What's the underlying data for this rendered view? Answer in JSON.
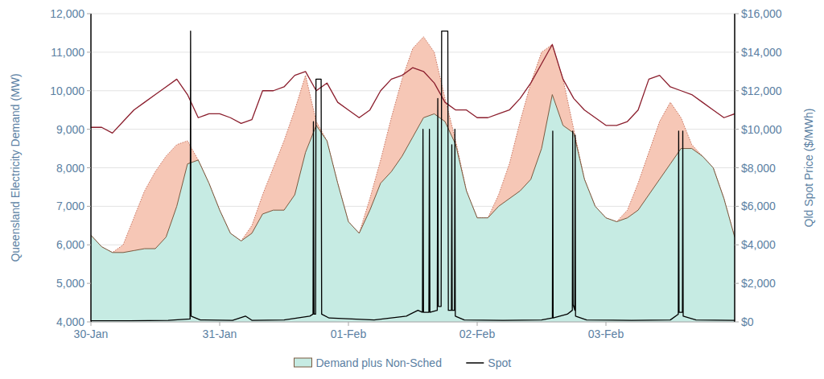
{
  "chart_data": {
    "type": "line",
    "x": [
      0,
      0.0833,
      0.1667,
      0.25,
      0.3333,
      0.4167,
      0.5,
      0.5833,
      0.6667,
      0.75,
      0.8333,
      0.9167,
      1,
      1.0833,
      1.1667,
      1.25,
      1.3333,
      1.4167,
      1.5,
      1.5833,
      1.6667,
      1.75,
      1.8333,
      1.9167,
      2,
      2.0833,
      2.1667,
      2.25,
      2.3333,
      2.4167,
      2.5,
      2.5833,
      2.6667,
      2.75,
      2.8333,
      2.9167,
      3,
      3.0833,
      3.1667,
      3.25,
      3.3333,
      3.4167,
      3.5,
      3.5833,
      3.6667,
      3.75,
      3.8333,
      3.9167,
      4,
      4.0833,
      4.1667,
      4.25,
      4.3333,
      4.4167,
      4.5,
      4.5833,
      4.6667,
      4.75,
      4.8333,
      4.9167,
      5
    ],
    "xlim": [
      0,
      5
    ],
    "xticks": [
      {
        "value": 0,
        "label": "30-Jan"
      },
      {
        "value": 1,
        "label": "31-Jan"
      },
      {
        "value": 2,
        "label": "01-Feb"
      },
      {
        "value": 3,
        "label": "02-Feb"
      },
      {
        "value": 4,
        "label": "03-Feb"
      }
    ],
    "ylabel": "Queensland Electricity Demand (MW)",
    "ylim": [
      4000,
      12000
    ],
    "yticks": [
      {
        "value": 4000,
        "label": "4,000"
      },
      {
        "value": 5000,
        "label": "5,000"
      },
      {
        "value": 6000,
        "label": "6,000"
      },
      {
        "value": 7000,
        "label": "7,000"
      },
      {
        "value": 8000,
        "label": "8,000"
      },
      {
        "value": 9000,
        "label": "9,000"
      },
      {
        "value": 10000,
        "label": "10,000"
      },
      {
        "value": 11000,
        "label": "11,000"
      },
      {
        "value": 12000,
        "label": "12,000"
      }
    ],
    "y2label": "Qld Spot Price ($/MWh)",
    "y2lim": [
      0,
      16000
    ],
    "y2ticks": [
      {
        "value": 0,
        "label": "$0"
      },
      {
        "value": 2000,
        "label": "$2,000"
      },
      {
        "value": 4000,
        "label": "$4,000"
      },
      {
        "value": 6000,
        "label": "$6,000"
      },
      {
        "value": 8000,
        "label": "$8,000"
      },
      {
        "value": 10000,
        "label": "$10,000"
      },
      {
        "value": 12000,
        "label": "$12,000"
      },
      {
        "value": 14000,
        "label": "$14,000"
      },
      {
        "value": 16000,
        "label": "$16,000"
      }
    ],
    "grid": true,
    "legend": "bottom",
    "series": [
      {
        "type": "area",
        "color": "#f6c7b6",
        "line_style": "dotted",
        "values": [
          6250,
          5950,
          5800,
          6000,
          6700,
          7400,
          7900,
          8300,
          8600,
          8700,
          8200,
          7600,
          6900,
          6300,
          6100,
          6500,
          7300,
          8000,
          8700,
          9500,
          10400,
          9200,
          8700,
          7600,
          6600,
          6300,
          7200,
          8200,
          9300,
          10300,
          11100,
          11400,
          11000,
          9800,
          8700,
          7400,
          6700,
          6700,
          7300,
          8100,
          9200,
          10200,
          11000,
          11200,
          10300,
          9000,
          7700,
          7000,
          6700,
          6600,
          6900,
          7600,
          8400,
          9200,
          9700,
          9300,
          8600,
          8300,
          8000,
          7200,
          6200
        ]
      },
      {
        "name": "Demand plus Non-Sched",
        "type": "area",
        "color": "#c6ebe3",
        "values": [
          6250,
          5950,
          5800,
          5800,
          5850,
          5900,
          5900,
          6200,
          7000,
          8100,
          8200,
          7600,
          6900,
          6300,
          6100,
          6300,
          6800,
          6900,
          6900,
          7300,
          8400,
          9100,
          8700,
          7600,
          6600,
          6300,
          6900,
          7600,
          7900,
          8300,
          8800,
          9300,
          9400,
          9200,
          8600,
          7400,
          6700,
          6700,
          7000,
          7200,
          7400,
          7700,
          8500,
          9900,
          9100,
          8900,
          7700,
          7000,
          6700,
          6600,
          6700,
          6900,
          7300,
          7700,
          8100,
          8500,
          8500,
          8300,
          8000,
          7200,
          6200
        ]
      },
      {
        "type": "line",
        "color": "#8b1e2d",
        "values": [
          9050,
          9050,
          8900,
          9200,
          9500,
          9700,
          9900,
          10100,
          10300,
          9900,
          9300,
          9400,
          9400,
          9300,
          9150,
          9250,
          10000,
          10000,
          10100,
          10400,
          10500,
          10000,
          10200,
          9700,
          9500,
          9300,
          9500,
          10000,
          10300,
          10400,
          10600,
          10500,
          10200,
          9700,
          9500,
          9500,
          9300,
          9300,
          9400,
          9500,
          9800,
          10200,
          10700,
          11200,
          10300,
          9800,
          9500,
          9300,
          9100,
          9100,
          9200,
          9500,
          10300,
          10400,
          10100,
          10000,
          9900,
          9700,
          9500,
          9300,
          9400
        ]
      },
      {
        "name": "Spot",
        "type": "line",
        "color": "#000000",
        "axis": "y2",
        "x": [
          0,
          0.3,
          0.6,
          0.77,
          0.774,
          0.778,
          0.85,
          1.1,
          1.2,
          1.25,
          1.5,
          1.7,
          1.725,
          1.728,
          1.733,
          1.745,
          1.748,
          1.788,
          1.792,
          1.85,
          2.2,
          2.45,
          2.54,
          2.575,
          2.579,
          2.583,
          2.625,
          2.629,
          2.633,
          2.69,
          2.694,
          2.698,
          2.72,
          2.724,
          2.772,
          2.776,
          2.8,
          2.803,
          2.806,
          2.824,
          2.827,
          2.83,
          2.9,
          3.2,
          3.5,
          3.584,
          3.587,
          3.59,
          3.7,
          3.739,
          3.742,
          3.745,
          3.758,
          3.761,
          3.764,
          3.85,
          4.2,
          4.5,
          4.562,
          4.565,
          4.568,
          4.594,
          4.597,
          4.6,
          4.7,
          5
        ],
        "values": [
          60,
          60,
          80,
          150,
          15100,
          300,
          100,
          80,
          300,
          80,
          100,
          300,
          400,
          10400,
          400,
          400,
          12600,
          12600,
          400,
          200,
          100,
          300,
          600,
          500,
          10000,
          500,
          500,
          10000,
          500,
          600,
          11600,
          800,
          800,
          15100,
          15100,
          600,
          600,
          9200,
          600,
          600,
          10000,
          300,
          100,
          80,
          100,
          200,
          9900,
          200,
          400,
          600,
          9900,
          900,
          600,
          9700,
          300,
          100,
          80,
          100,
          400,
          9900,
          500,
          500,
          9900,
          300,
          100,
          80
        ]
      }
    ]
  }
}
